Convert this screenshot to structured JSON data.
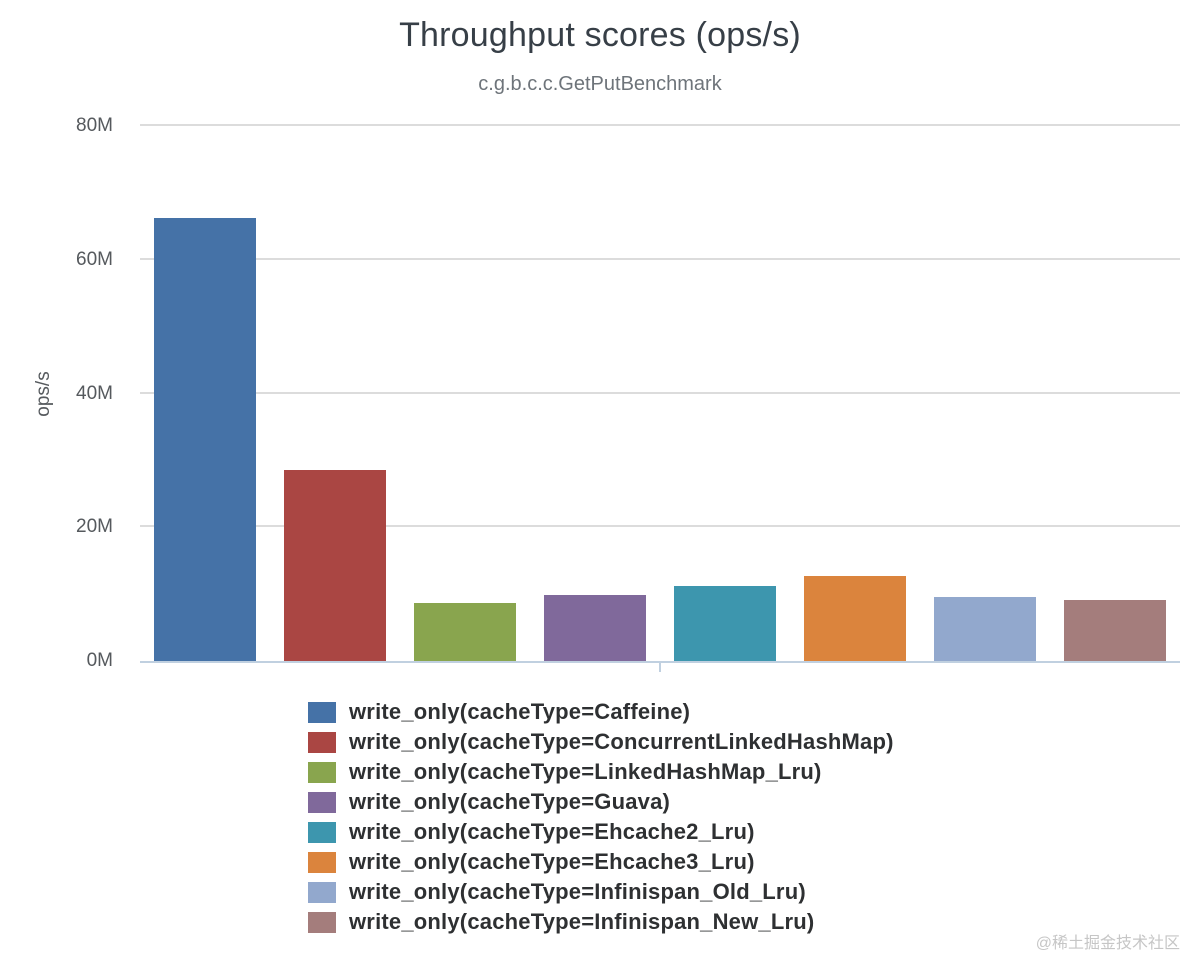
{
  "watermark": "@稀土掘金技术社区",
  "chart_data": {
    "type": "bar",
    "title": "Throughput scores (ops/s)",
    "subtitle": "c.g.b.c.c.GetPutBenchmark",
    "xlabel": "",
    "ylabel": "ops/s",
    "ylim": [
      0,
      80000000
    ],
    "grid": true,
    "legend_position": "bottom-left",
    "yticks": [
      {
        "label": "0M",
        "value": 0
      },
      {
        "label": "20M",
        "value": 20000000
      },
      {
        "label": "40M",
        "value": 40000000
      },
      {
        "label": "60M",
        "value": 60000000
      },
      {
        "label": "80M",
        "value": 80000000
      }
    ],
    "categories": [
      "write_only"
    ],
    "series": [
      {
        "name": "write_only(cacheType=Caffeine)",
        "value": 66300000,
        "color": "#4572A7"
      },
      {
        "name": "write_only(cacheType=ConcurrentLinkedHashMap)",
        "value": 28500000,
        "color": "#AA4643"
      },
      {
        "name": "write_only(cacheType=LinkedHashMap_Lru)",
        "value": 8700000,
        "color": "#89A54E"
      },
      {
        "name": "write_only(cacheType=Guava)",
        "value": 9900000,
        "color": "#80699B"
      },
      {
        "name": "write_only(cacheType=Ehcache2_Lru)",
        "value": 11200000,
        "color": "#3D96AE"
      },
      {
        "name": "write_only(cacheType=Ehcache3_Lru)",
        "value": 12700000,
        "color": "#DB843D"
      },
      {
        "name": "write_only(cacheType=Infinispan_Old_Lru)",
        "value": 9600000,
        "color": "#92A8CD"
      },
      {
        "name": "write_only(cacheType=Infinispan_New_Lru)",
        "value": 9100000,
        "color": "#A47D7C"
      }
    ],
    "axis_colors": {
      "grid": "#DCDCDC",
      "axis_line": "#C0D0E0"
    }
  }
}
